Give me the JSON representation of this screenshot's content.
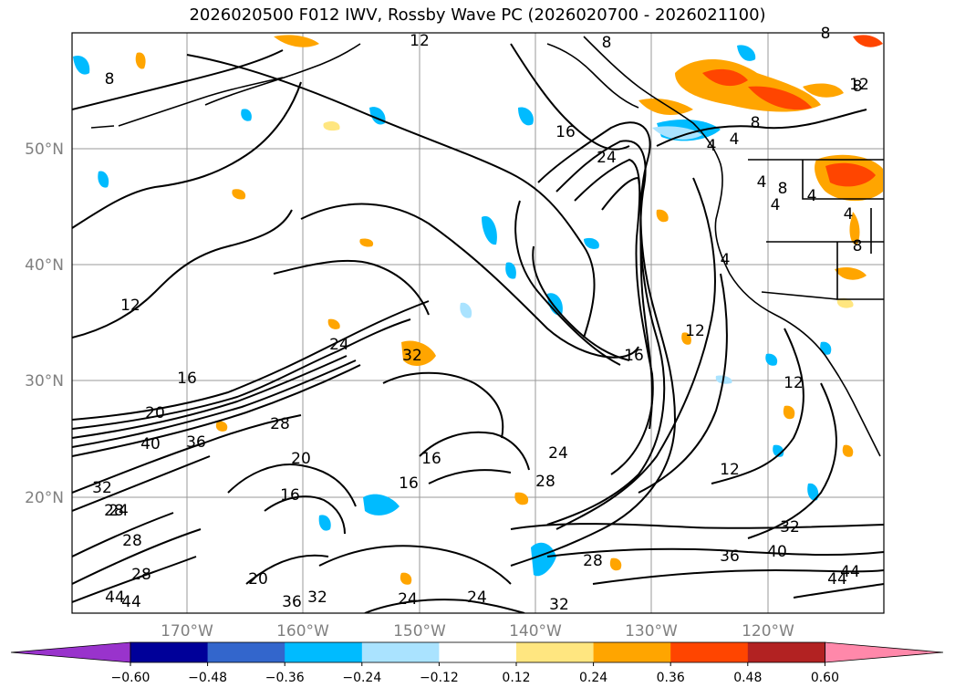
{
  "title": "2026020500 F012 IWV, Rossby Wave PC (2026020700 - 2026021100)",
  "lat_labels": [
    "50°N",
    "40°N",
    "30°N",
    "20°N"
  ],
  "lon_labels": [
    "170°W",
    "160°W",
    "150°W",
    "140°W",
    "130°W",
    "120°W"
  ],
  "colorbar": {
    "ticks": [
      "−0.60",
      "−0.48",
      "−0.36",
      "−0.24",
      "−0.12",
      "0.12",
      "0.24",
      "0.36",
      "0.48",
      "0.60"
    ],
    "colors": [
      "#9933cc",
      "#000099",
      "#3366cc",
      "#00bbff",
      "#aae3ff",
      "#ffffff",
      "#ffe680",
      "#ffa500",
      "#ff4500",
      "#b22222",
      "#ff88aa"
    ]
  },
  "contour_labels": [
    "12",
    "8",
    "8",
    "8",
    "8",
    "12",
    "16",
    "24",
    "8",
    "4",
    "4",
    "4",
    "8",
    "4",
    "4",
    "4",
    "8",
    "4",
    "12",
    "16",
    "12",
    "24",
    "16",
    "32",
    "20",
    "40",
    "36",
    "28",
    "20",
    "16",
    "16",
    "16",
    "24",
    "28",
    "12",
    "32",
    "28",
    "24",
    "28",
    "36",
    "40",
    "44",
    "44",
    "24",
    "28",
    "32",
    "28",
    "44",
    "44",
    "20",
    "36",
    "32",
    "24",
    "32",
    "12"
  ],
  "legend": {}
}
